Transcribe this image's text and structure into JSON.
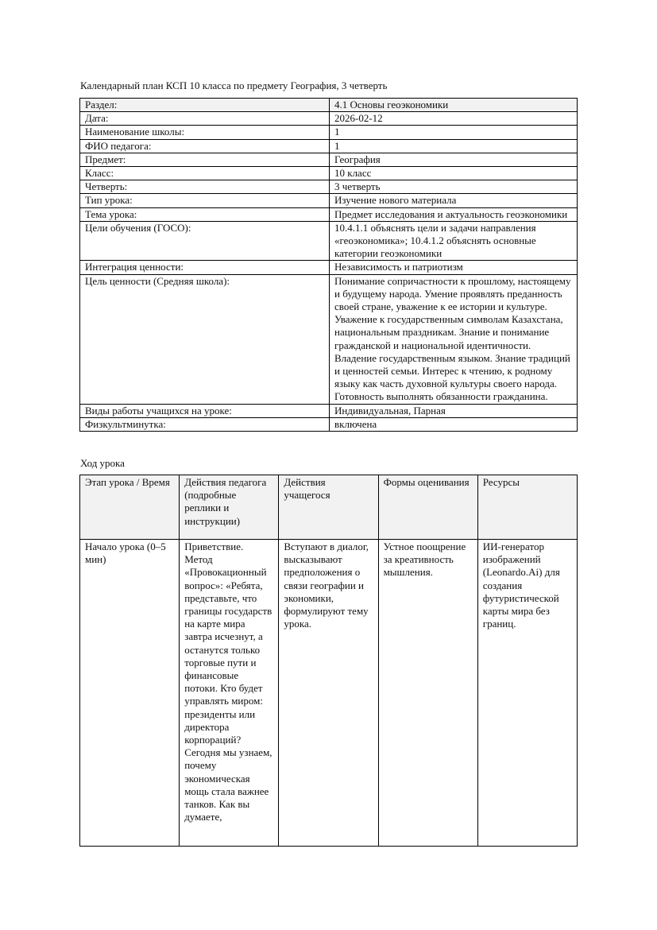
{
  "document": {
    "title": "Календарный план КСП 10 класса по предмету География, 3 четверть",
    "info_rows": [
      {
        "label": "Раздел:",
        "value": "4.1 Основы геоэкономики"
      },
      {
        "label": "Дата:",
        "value": "2026-02-12"
      },
      {
        "label": "Наименование школы:",
        "value": "1"
      },
      {
        "label": "ФИО педагога:",
        "value": "1"
      },
      {
        "label": "Предмет:",
        "value": "География"
      },
      {
        "label": "Класс:",
        "value": "10 класс"
      },
      {
        "label": "Четверть:",
        "value": "3 четверть"
      },
      {
        "label": "Тип урока:",
        "value": "Изучение нового материала"
      },
      {
        "label": "Тема урока:",
        "value": "Предмет исследования и актуальность геоэкономики"
      },
      {
        "label": "Цели обучения (ГОСО):",
        "value": "10.4.1.1 объяснять цели и задачи направления «геоэкономика»; 10.4.1.2 объяснять основные категории геоэкономики"
      },
      {
        "label": "Интеграция ценности:",
        "value": "Независимость и патриотизм"
      },
      {
        "label": "Цель ценности (Средняя школа):",
        "value": "Понимание сопричастности к прошлому, настоящему и будущему народа. Умение проявлять преданность своей стране, уважение к ее истории и культуре. Уважение к государственным символам Казахстана, национальным праздникам. Знание и понимание гражданской и национальной идентичности. Владение государственным языком. Знание традиций и ценностей семьи. Интерес к чтению, к родному языку как часть духовной культуры своего народа. Готовность выполнять обязанности гражданина."
      },
      {
        "label": "Виды работы учащихся на уроке:",
        "value": "Индивидуальная, Парная"
      },
      {
        "label": "Физкультминутка:",
        "value": "включена"
      }
    ],
    "lesson_heading": "Ход урока",
    "lesson_table": {
      "headers": [
        "Этап урока / Время",
        "Действия педагога (подробные реплики и инструкции)",
        "Действия учащегося",
        "Формы оценивания",
        "Ресурсы"
      ],
      "rows": [
        [
          "Начало урока (0–5 мин)",
          "Приветствие. Метод «Провокационный вопрос»: «Ребята, представьте, что границы государств на карте мира завтра исчезнут, а останутся только торговые пути и финансовые потоки. Кто будет управлять миром: президенты или директора корпораций? Сегодня мы узнаем, почему экономическая мощь стала важнее танков. Как вы думаете,",
          "Вступают в диалог, высказывают предположения о связи географии и экономики, формулируют тему урока.",
          "Устное поощрение за креативность мышления.",
          "ИИ-генератор изображений (Leonardo.Ai) для создания футуристической карты мира без границ."
        ]
      ]
    }
  }
}
